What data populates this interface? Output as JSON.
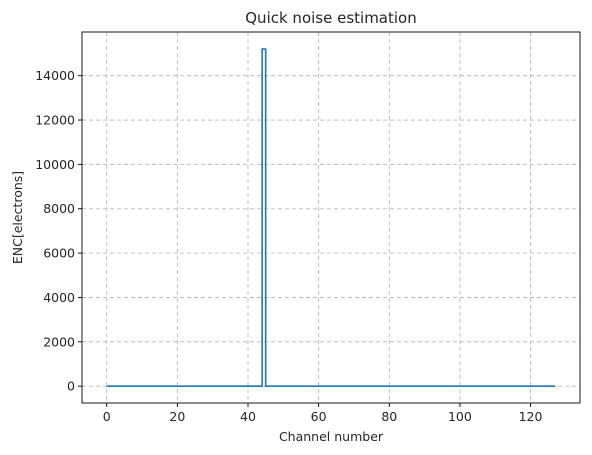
{
  "chart_data": {
    "type": "line",
    "title": "Quick noise estimation",
    "xlabel": "Channel number",
    "ylabel": "ENC[electrons]",
    "xlim": [
      -7,
      134
    ],
    "ylim": [
      -760,
      15970
    ],
    "xticks": [
      0,
      20,
      40,
      60,
      80,
      100,
      120
    ],
    "yticks": [
      0,
      2000,
      4000,
      6000,
      8000,
      10000,
      12000,
      14000
    ],
    "grid": true,
    "step": true,
    "series": [
      {
        "color": "#1f77b4",
        "points": [
          [
            0,
            0
          ],
          [
            44,
            0
          ],
          [
            44,
            15200
          ],
          [
            45,
            15200
          ],
          [
            45,
            0
          ],
          [
            127,
            0
          ]
        ]
      }
    ]
  }
}
